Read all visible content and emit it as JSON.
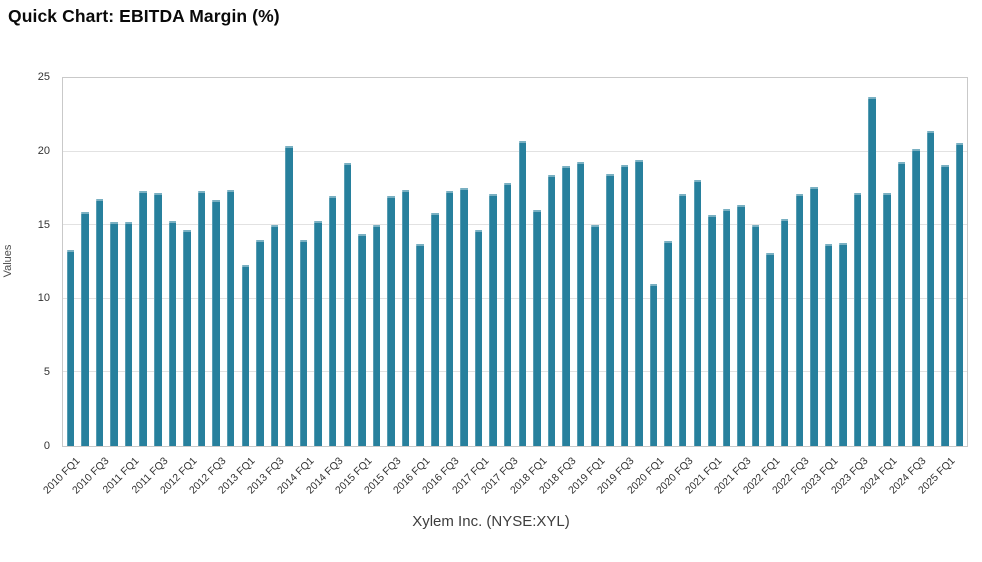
{
  "title": "Quick Chart: EBITDA Margin (%)",
  "chart_data": {
    "type": "bar",
    "title": "Quick Chart: EBITDA Margin (%)",
    "xlabel": "Xylem Inc. (NYSE:XYL)",
    "ylabel": "Values",
    "ylim": [
      0,
      25
    ],
    "yticks": [
      0,
      5,
      10,
      15,
      20,
      25
    ],
    "grid": true,
    "legend": "none",
    "bar_color": "#27809d",
    "grid_color": "#e2e2e2",
    "axis_border_color": "#c9c9c9",
    "categories": [
      "2010 FQ1",
      "2010 FQ2",
      "2010 FQ3",
      "2010 FQ4",
      "2011 FQ1",
      "2011 FQ2",
      "2011 FQ3",
      "2011 FQ4",
      "2012 FQ1",
      "2012 FQ2",
      "2012 FQ3",
      "2012 FQ4",
      "2013 FQ1",
      "2013 FQ2",
      "2013 FQ3",
      "2013 FQ4",
      "2014 FQ1",
      "2014 FQ2",
      "2014 FQ3",
      "2014 FQ4",
      "2015 FQ1",
      "2015 FQ2",
      "2015 FQ3",
      "2015 FQ4",
      "2016 FQ1",
      "2016 FQ2",
      "2016 FQ3",
      "2016 FQ4",
      "2017 FQ1",
      "2017 FQ2",
      "2017 FQ3",
      "2017 FQ4",
      "2018 FQ1",
      "2018 FQ2",
      "2018 FQ3",
      "2018 FQ4",
      "2019 FQ1",
      "2019 FQ2",
      "2019 FQ3",
      "2019 FQ4",
      "2020 FQ1",
      "2020 FQ2",
      "2020 FQ3",
      "2020 FQ4",
      "2021 FQ1",
      "2021 FQ2",
      "2021 FQ3",
      "2021 FQ4",
      "2022 FQ1",
      "2022 FQ2",
      "2022 FQ3",
      "2022 FQ4",
      "2023 FQ1",
      "2023 FQ2",
      "2023 FQ3",
      "2023 FQ4",
      "2024 FQ1",
      "2024 FQ2",
      "2024 FQ3",
      "2024 FQ4",
      "2025 FQ1",
      "2025 FQ2"
    ],
    "values": [
      13.3,
      15.9,
      16.8,
      15.2,
      15.2,
      17.3,
      17.2,
      15.3,
      14.7,
      17.3,
      16.7,
      17.4,
      12.3,
      14.0,
      15.0,
      20.4,
      14.0,
      15.3,
      17.0,
      19.2,
      14.4,
      15.0,
      17.0,
      17.4,
      13.7,
      15.8,
      17.3,
      17.5,
      14.7,
      17.1,
      17.9,
      20.7,
      16.0,
      18.4,
      19.0,
      19.3,
      15.0,
      18.5,
      19.1,
      19.4,
      11.0,
      13.9,
      17.1,
      18.1,
      15.7,
      16.1,
      16.4,
      15.0,
      13.1,
      15.4,
      17.1,
      17.6,
      13.7,
      13.8,
      17.2,
      23.7,
      17.2,
      19.3,
      20.2,
      21.4,
      19.1,
      20.6
    ],
    "xticks_shown": [
      "2010 FQ1",
      "2010 FQ3",
      "2011 FQ1",
      "2011 FQ3",
      "2012 FQ1",
      "2012 FQ3",
      "2013 FQ1",
      "2013 FQ3",
      "2014 FQ1",
      "2014 FQ3",
      "2015 FQ1",
      "2015 FQ3",
      "2016 FQ1",
      "2016 FQ3",
      "2017 FQ1",
      "2017 FQ3",
      "2018 FQ1",
      "2018 FQ3",
      "2019 FQ1",
      "2019 FQ3",
      "2020 FQ1",
      "2020 FQ3",
      "2021 FQ1",
      "2021 FQ3",
      "2022 FQ1",
      "2022 FQ3",
      "2023 FQ1",
      "2023 FQ3",
      "2024 FQ1",
      "2024 FQ3",
      "2025 FQ1"
    ]
  }
}
